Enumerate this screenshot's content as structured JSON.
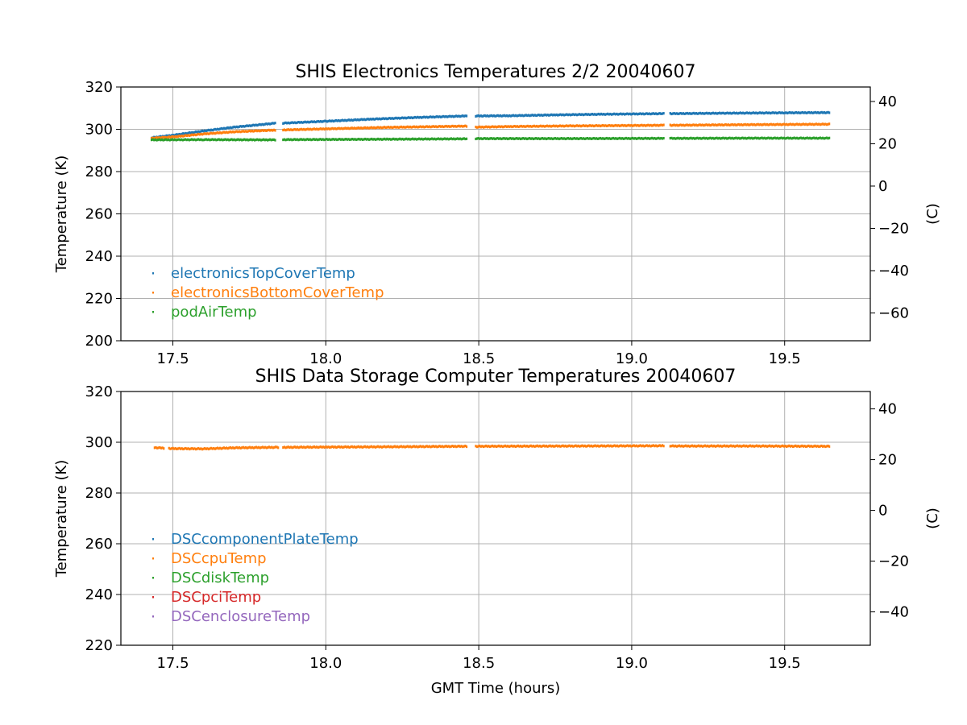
{
  "figure": {
    "xlabel": "GMT Time (hours)"
  },
  "chart_data": [
    {
      "type": "scatter",
      "title": "SHIS Electronics Temperatures 2/2 20040607",
      "xlabel": "",
      "ylabel": "Temperature (K)",
      "ylabel_right": "(C)",
      "xlim": [
        17.33,
        19.78
      ],
      "ylim": [
        200,
        320
      ],
      "ylim_right_celsius": [
        -73.15,
        46.85
      ],
      "xticks": [
        "17.5",
        "18.0",
        "18.5",
        "19.0",
        "19.5"
      ],
      "yticks": [
        "200",
        "220",
        "240",
        "260",
        "280",
        "300",
        "320"
      ],
      "yticks_right": [
        "−60",
        "−40",
        "−20",
        "0",
        "20",
        "40"
      ],
      "grid": true,
      "legend_position": "lower-left",
      "gaps": [
        [
          17.835,
          17.86
        ],
        [
          18.46,
          18.49
        ],
        [
          19.105,
          19.125
        ]
      ],
      "series": [
        {
          "name": "electronicsTopCoverTemp",
          "color": "#1f77b4",
          "points": [
            [
              17.43,
              296.0
            ],
            [
              17.5,
              297.2
            ],
            [
              17.6,
              299.2
            ],
            [
              17.7,
              301.0
            ],
            [
              17.83,
              302.8
            ],
            [
              17.86,
              302.9
            ],
            [
              18.0,
              303.8
            ],
            [
              18.15,
              304.8
            ],
            [
              18.3,
              305.6
            ],
            [
              18.46,
              306.3
            ],
            [
              18.49,
              306.3
            ],
            [
              18.6,
              306.4
            ],
            [
              18.75,
              306.8
            ],
            [
              18.9,
              307.1
            ],
            [
              19.1,
              307.4
            ],
            [
              19.13,
              307.4
            ],
            [
              19.3,
              307.6
            ],
            [
              19.5,
              307.8
            ],
            [
              19.65,
              307.9
            ]
          ]
        },
        {
          "name": "electronicsBottomCoverTemp",
          "color": "#ff7f0e",
          "points": [
            [
              17.43,
              295.8
            ],
            [
              17.5,
              296.4
            ],
            [
              17.6,
              297.8
            ],
            [
              17.7,
              298.8
            ],
            [
              17.83,
              299.6
            ],
            [
              17.86,
              299.7
            ],
            [
              18.0,
              300.2
            ],
            [
              18.2,
              300.9
            ],
            [
              18.46,
              301.5
            ],
            [
              18.49,
              301.0
            ],
            [
              18.6,
              301.3
            ],
            [
              18.8,
              301.6
            ],
            [
              19.1,
              301.9
            ],
            [
              19.13,
              301.9
            ],
            [
              19.4,
              302.2
            ],
            [
              19.65,
              302.4
            ]
          ]
        },
        {
          "name": "podAirTemp",
          "color": "#2ca02c",
          "points": [
            [
              17.43,
              295.0
            ],
            [
              17.6,
              295.1
            ],
            [
              17.83,
              295.0
            ],
            [
              17.86,
              295.1
            ],
            [
              18.2,
              295.3
            ],
            [
              18.46,
              295.5
            ],
            [
              18.49,
              295.6
            ],
            [
              18.8,
              295.6
            ],
            [
              19.1,
              295.7
            ],
            [
              19.13,
              295.7
            ],
            [
              19.4,
              295.8
            ],
            [
              19.65,
              295.8
            ]
          ]
        }
      ]
    },
    {
      "type": "scatter",
      "title": "SHIS Data Storage Computer Temperatures 20040607",
      "xlabel": "GMT Time (hours)",
      "ylabel": "Temperature (K)",
      "ylabel_right": "(C)",
      "xlim": [
        17.33,
        19.78
      ],
      "ylim": [
        220,
        320
      ],
      "ylim_right_celsius": [
        -53.15,
        46.85
      ],
      "xticks": [
        "17.5",
        "18.0",
        "18.5",
        "19.0",
        "19.5"
      ],
      "yticks": [
        "220",
        "240",
        "260",
        "280",
        "300",
        "320"
      ],
      "yticks_right": [
        "−40",
        "−20",
        "0",
        "20",
        "40"
      ],
      "grid": true,
      "legend_position": "lower-left",
      "gaps": [
        [
          17.47,
          17.485
        ],
        [
          17.845,
          17.86
        ],
        [
          18.46,
          18.49
        ],
        [
          19.105,
          19.125
        ]
      ],
      "series": [
        {
          "name": "DSCcomponentPlateTemp",
          "color": "#1f77b4",
          "points": []
        },
        {
          "name": "DSCcpuTemp",
          "color": "#ff7f0e",
          "points": [
            [
              17.44,
              297.9
            ],
            [
              17.5,
              297.5
            ],
            [
              17.6,
              297.4
            ],
            [
              17.7,
              297.8
            ],
            [
              17.84,
              298.0
            ],
            [
              17.86,
              298.0
            ],
            [
              18.0,
              298.1
            ],
            [
              18.2,
              298.2
            ],
            [
              18.46,
              298.4
            ],
            [
              18.49,
              298.4
            ],
            [
              18.8,
              298.5
            ],
            [
              19.1,
              298.6
            ],
            [
              19.13,
              298.5
            ],
            [
              19.4,
              298.5
            ],
            [
              19.65,
              298.4
            ]
          ]
        },
        {
          "name": "DSCdiskTemp",
          "color": "#2ca02c",
          "points": []
        },
        {
          "name": "DSCpciTemp",
          "color": "#d62728",
          "points": []
        },
        {
          "name": "DSCenclosureTemp",
          "color": "#9467bd",
          "points": []
        }
      ]
    }
  ]
}
